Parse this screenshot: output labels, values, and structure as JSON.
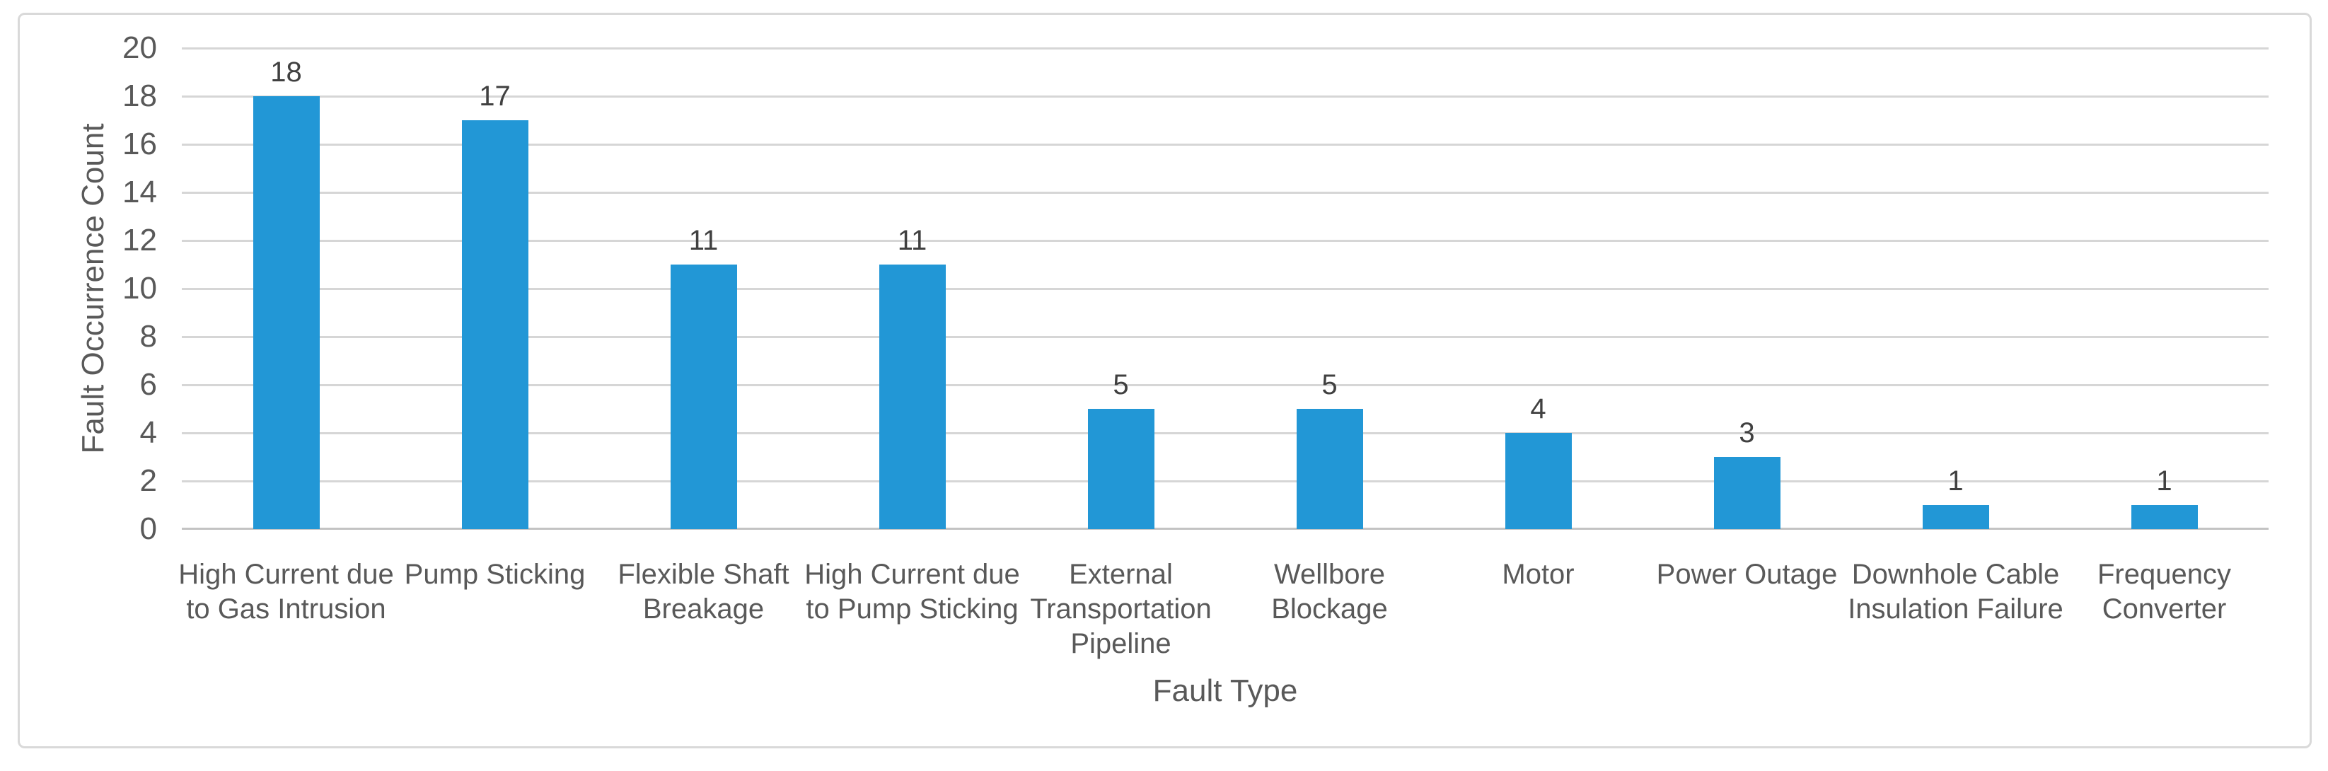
{
  "chart_data": {
    "type": "bar",
    "title": "",
    "categories": [
      "High Current due to Gas Intrusion",
      "Pump Sticking",
      "Flexible Shaft Breakage",
      "High Current due to Pump Sticking",
      "External Transportation Pipeline",
      "Wellbore Blockage",
      "Motor",
      "Power Outage",
      "Downhole Cable Insulation Failure",
      "Frequency Converter"
    ],
    "values": [
      18,
      17,
      11,
      11,
      5,
      5,
      4,
      3,
      1,
      1
    ],
    "data_labels": [
      "18",
      "17",
      "11",
      "11",
      "5",
      "5",
      "4",
      "3",
      "1",
      "1"
    ],
    "xlabel": "Fault Type",
    "ylabel": "Fault Occurrence Count",
    "ylim": [
      0,
      20
    ],
    "yticks": [
      0,
      2,
      4,
      6,
      8,
      10,
      12,
      14,
      16,
      18,
      20
    ],
    "grid": "horizontal",
    "legend_position": "none"
  },
  "colors": {
    "bar": "#2297D6",
    "gridline": "#D6D6D6",
    "axis_line": "#C3C3C3",
    "axis_text": "#595959",
    "data_label_text": "#404040",
    "frame_border": "#D9D9D9",
    "background": "#FFFFFF"
  }
}
